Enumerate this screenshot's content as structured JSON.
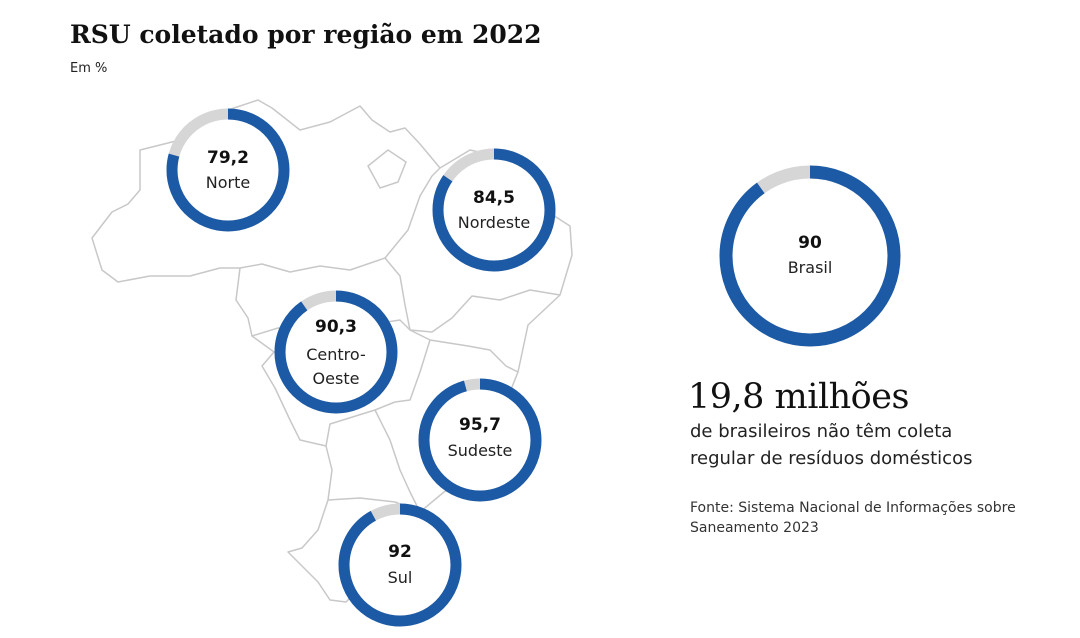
{
  "chart_data": {
    "type": "donut",
    "title": "RSU coletado por região em 2022",
    "subtitle": "Em %",
    "series": [
      {
        "region": "Norte",
        "value": 79.2,
        "value_label": "79,2"
      },
      {
        "region": "Nordeste",
        "value": 84.5,
        "value_label": "84,5"
      },
      {
        "region": "Centro-Oeste",
        "value": 90.3,
        "value_label": "90,3"
      },
      {
        "region": "Sudeste",
        "value": 95.7,
        "value_label": "95,7"
      },
      {
        "region": "Sul",
        "value": 92,
        "value_label": "92"
      }
    ],
    "total": {
      "region": "Brasil",
      "value": 90,
      "value_label": "90"
    }
  },
  "colors": {
    "filled": "#1c5aa6",
    "remainder": "#d6d6d6",
    "map_outline": "#c8c8c8"
  },
  "highlight": {
    "number": "19,8 milhões",
    "description": "de brasileiros não têm coleta regular de resíduos domésticos"
  },
  "source": "Fonte: Sistema Nacional de Informações sobre Saneamento 2023"
}
